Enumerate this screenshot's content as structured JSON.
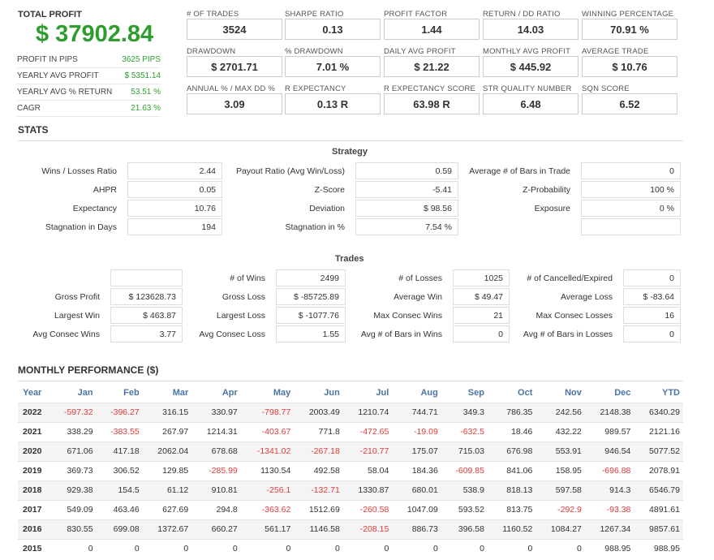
{
  "summary": {
    "total_label": "TOTAL PROFIT",
    "total_value": "$ 37902.84",
    "rows": [
      {
        "label": "PROFIT IN PIPS",
        "value": "3625 PIPS"
      },
      {
        "label": "YEARLY AVG PROFIT",
        "value": "$ 5351.14"
      },
      {
        "label": "YEARLY AVG % RETURN",
        "value": "53.51 %"
      },
      {
        "label": "CAGR",
        "value": "21.63 %"
      }
    ]
  },
  "metrics": [
    {
      "label": "# OF TRADES",
      "value": "3524"
    },
    {
      "label": "SHARPE RATIO",
      "value": "0.13"
    },
    {
      "label": "PROFIT FACTOR",
      "value": "1.44"
    },
    {
      "label": "RETURN / DD RATIO",
      "value": "14.03"
    },
    {
      "label": "WINNING PERCENTAGE",
      "value": "70.91 %"
    },
    {
      "label": "DRAWDOWN",
      "value": "$ 2701.71"
    },
    {
      "label": "% DRAWDOWN",
      "value": "7.01 %"
    },
    {
      "label": "DAILY AVG PROFIT",
      "value": "$ 21.22"
    },
    {
      "label": "MONTHLY AVG PROFIT",
      "value": "$ 445.92"
    },
    {
      "label": "AVERAGE TRADE",
      "value": "$ 10.76"
    },
    {
      "label": "ANNUAL % / MAX DD %",
      "value": "3.09"
    },
    {
      "label": "R EXPECTANCY",
      "value": "0.13 R"
    },
    {
      "label": "R EXPECTANCY SCORE",
      "value": "63.98 R"
    },
    {
      "label": "STR QUALITY NUMBER",
      "value": "6.48"
    },
    {
      "label": "SQN SCORE",
      "value": "6.52"
    }
  ],
  "stats_title": "STATS",
  "strategy": {
    "title": "Strategy",
    "rows": [
      [
        {
          "label": "Wins / Losses Ratio",
          "value": "2.44"
        },
        {
          "label": "Payout Ratio (Avg Win/Loss)",
          "value": "0.59"
        },
        {
          "label": "Average # of Bars in Trade",
          "value": "0"
        }
      ],
      [
        {
          "label": "AHPR",
          "value": "0.05"
        },
        {
          "label": "Z-Score",
          "value": "-5.41"
        },
        {
          "label": "Z-Probability",
          "value": "100 %"
        }
      ],
      [
        {
          "label": "Expectancy",
          "value": "10.76"
        },
        {
          "label": "Deviation",
          "value": "$ 98.56"
        },
        {
          "label": "Exposure",
          "value": "0 %"
        }
      ],
      [
        {
          "label": "Stagnation in Days",
          "value": "194"
        },
        {
          "label": "Stagnation in %",
          "value": "7.54 %"
        },
        {
          "label": "",
          "value": ""
        }
      ]
    ]
  },
  "trades": {
    "title": "Trades",
    "rows": [
      [
        {
          "label": "",
          "value": ""
        },
        {
          "label": "# of Wins",
          "value": "2499"
        },
        {
          "label": "# of Losses",
          "value": "1025"
        },
        {
          "label": "# of Cancelled/Expired",
          "value": "0"
        }
      ],
      [
        {
          "label": "Gross Profit",
          "value": "$ 123628.73"
        },
        {
          "label": "Gross Loss",
          "value": "$ -85725.89"
        },
        {
          "label": "Average Win",
          "value": "$ 49.47"
        },
        {
          "label": "Average Loss",
          "value": "$ -83.64"
        }
      ],
      [
        {
          "label": "Largest Win",
          "value": "$ 463.87"
        },
        {
          "label": "Largest Loss",
          "value": "$ -1077.76"
        },
        {
          "label": "Max Consec Wins",
          "value": "21"
        },
        {
          "label": "Max Consec Losses",
          "value": "16"
        }
      ],
      [
        {
          "label": "Avg Consec Wins",
          "value": "3.77"
        },
        {
          "label": "Avg Consec Loss",
          "value": "1.55"
        },
        {
          "label": "Avg # of Bars in Wins",
          "value": "0"
        },
        {
          "label": "Avg # of Bars in Losses",
          "value": "0"
        }
      ]
    ]
  },
  "monthly": {
    "title": "MONTHLY PERFORMANCE ($)",
    "headers": [
      "Year",
      "Jan",
      "Feb",
      "Mar",
      "Apr",
      "May",
      "Jun",
      "Jul",
      "Aug",
      "Sep",
      "Oct",
      "Nov",
      "Dec",
      "YTD"
    ],
    "rows": [
      [
        "2022",
        "-597.32",
        "-396.27",
        "316.15",
        "330.97",
        "-798.77",
        "2003.49",
        "1210.74",
        "744.71",
        "349.3",
        "786.35",
        "242.56",
        "2148.38",
        "6340.29"
      ],
      [
        "2021",
        "338.29",
        "-383.55",
        "267.97",
        "1214.31",
        "-403.67",
        "771.8",
        "-472.65",
        "-19.09",
        "-632.5",
        "18.46",
        "432.22",
        "989.57",
        "2121.16"
      ],
      [
        "2020",
        "671.06",
        "417.18",
        "2062.04",
        "678.68",
        "-1341.02",
        "-267.18",
        "-210.77",
        "175.07",
        "715.03",
        "676.98",
        "553.91",
        "946.54",
        "5077.52"
      ],
      [
        "2019",
        "369.73",
        "306.52",
        "129.85",
        "-285.99",
        "1130.54",
        "492.58",
        "58.04",
        "184.36",
        "-609.85",
        "841.06",
        "158.95",
        "-696.88",
        "2078.91"
      ],
      [
        "2018",
        "929.38",
        "154.5",
        "61.12",
        "910.81",
        "-256.1",
        "-132.71",
        "1330.87",
        "680.01",
        "538.9",
        "818.13",
        "597.58",
        "914.3",
        "6546.79"
      ],
      [
        "2017",
        "549.09",
        "463.46",
        "627.69",
        "294.8",
        "-363.62",
        "1512.69",
        "-260.58",
        "1047.09",
        "593.52",
        "813.75",
        "-292.9",
        "-93.38",
        "4891.61"
      ],
      [
        "2016",
        "830.55",
        "699.08",
        "1372.67",
        "660.27",
        "561.17",
        "1146.58",
        "-208.15",
        "886.73",
        "396.58",
        "1160.52",
        "1084.27",
        "1267.34",
        "9857.61"
      ],
      [
        "2015",
        "0",
        "0",
        "0",
        "0",
        "0",
        "0",
        "0",
        "0",
        "0",
        "0",
        "0",
        "988.95",
        "988.95"
      ]
    ]
  }
}
